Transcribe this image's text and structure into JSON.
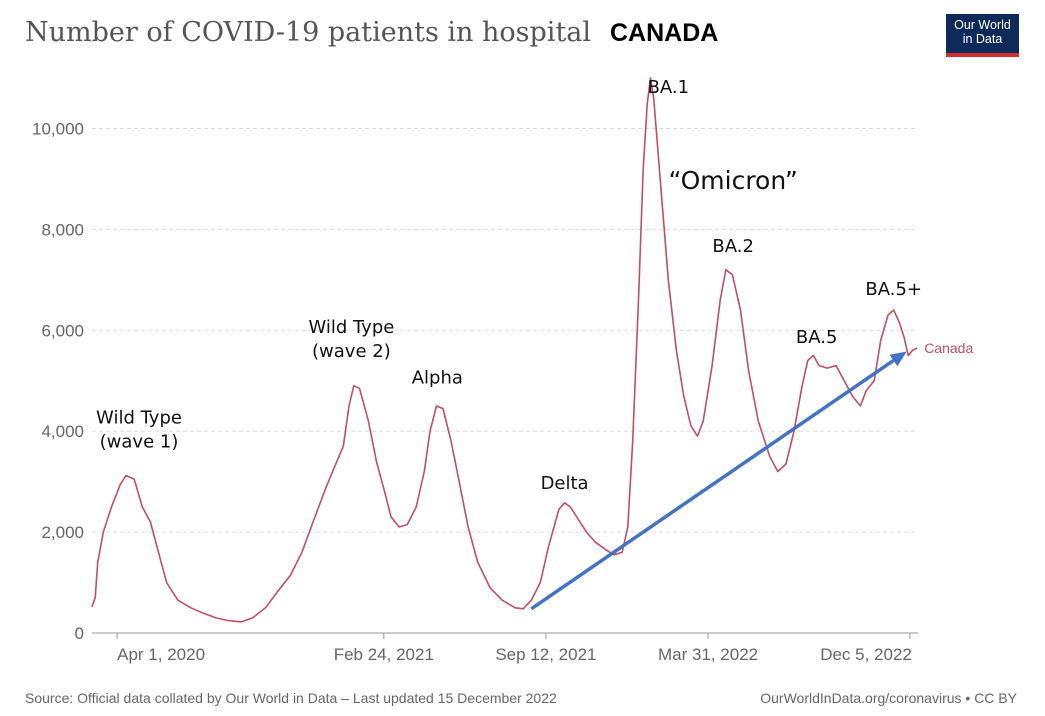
{
  "header": {
    "title": "Number of COVID-19 patients in hospital",
    "country": "CANADA",
    "logo_line1": "Our World",
    "logo_line2": "in Data"
  },
  "footer": {
    "source": "Source: Official data collated by Our World in Data – Last updated 15 December 2022",
    "license": "OurWorldInData.org/coronavirus • CC BY"
  },
  "colors": {
    "series": "#c15065",
    "arrow": "#4472c4",
    "grid": "#dddddd"
  },
  "chart_data": {
    "type": "line",
    "title": "Number of COVID-19 patients in hospital",
    "x_tick_labels": [
      "Apr 1, 2020",
      "Feb 24, 2021",
      "Sep 12, 2021",
      "Mar 31, 2022",
      "Dec 5, 2022"
    ],
    "x_tick_dates": [
      "2020-04-01",
      "2021-02-24",
      "2021-09-12",
      "2022-03-31",
      "2022-12-05"
    ],
    "xlim": [
      "2020-03-01",
      "2022-12-15"
    ],
    "ylim": [
      0,
      11000
    ],
    "y_ticks": [
      0,
      2000,
      4000,
      6000,
      8000,
      10000
    ],
    "y_tick_labels": [
      "0",
      "2,000",
      "4,000",
      "6,000",
      "8,000",
      "10,000"
    ],
    "grid": true,
    "series": [
      {
        "name": "Canada",
        "points": [
          [
            "2020-03-01",
            520
          ],
          [
            "2020-03-05",
            700
          ],
          [
            "2020-03-08",
            1400
          ],
          [
            "2020-03-15",
            2000
          ],
          [
            "2020-03-25",
            2500
          ],
          [
            "2020-04-05",
            2950
          ],
          [
            "2020-04-12",
            3120
          ],
          [
            "2020-04-22",
            3050
          ],
          [
            "2020-05-02",
            2500
          ],
          [
            "2020-05-12",
            2200
          ],
          [
            "2020-05-22",
            1600
          ],
          [
            "2020-06-01",
            1000
          ],
          [
            "2020-06-15",
            650
          ],
          [
            "2020-07-01",
            500
          ],
          [
            "2020-07-15",
            400
          ],
          [
            "2020-08-01",
            300
          ],
          [
            "2020-08-15",
            250
          ],
          [
            "2020-09-01",
            220
          ],
          [
            "2020-09-15",
            300
          ],
          [
            "2020-10-01",
            500
          ],
          [
            "2020-10-15",
            800
          ],
          [
            "2020-11-01",
            1150
          ],
          [
            "2020-11-15",
            1600
          ],
          [
            "2020-12-01",
            2300
          ],
          [
            "2020-12-15",
            2900
          ],
          [
            "2020-12-28",
            3400
          ],
          [
            "2021-01-05",
            3700
          ],
          [
            "2021-01-12",
            4500
          ],
          [
            "2021-01-18",
            4900
          ],
          [
            "2021-01-25",
            4850
          ],
          [
            "2021-02-05",
            4200
          ],
          [
            "2021-02-15",
            3400
          ],
          [
            "2021-02-25",
            2800
          ],
          [
            "2021-03-05",
            2300
          ],
          [
            "2021-03-15",
            2100
          ],
          [
            "2021-03-25",
            2150
          ],
          [
            "2021-04-05",
            2500
          ],
          [
            "2021-04-15",
            3200
          ],
          [
            "2021-04-22",
            4000
          ],
          [
            "2021-04-30",
            4500
          ],
          [
            "2021-05-08",
            4450
          ],
          [
            "2021-05-18",
            3800
          ],
          [
            "2021-05-28",
            3000
          ],
          [
            "2021-06-08",
            2100
          ],
          [
            "2021-06-20",
            1400
          ],
          [
            "2021-07-05",
            900
          ],
          [
            "2021-07-20",
            650
          ],
          [
            "2021-08-05",
            500
          ],
          [
            "2021-08-15",
            480
          ],
          [
            "2021-08-25",
            650
          ],
          [
            "2021-09-05",
            1000
          ],
          [
            "2021-09-15",
            1700
          ],
          [
            "2021-09-22",
            2100
          ],
          [
            "2021-09-28",
            2450
          ],
          [
            "2021-10-05",
            2580
          ],
          [
            "2021-10-12",
            2500
          ],
          [
            "2021-10-22",
            2250
          ],
          [
            "2021-11-01",
            2000
          ],
          [
            "2021-11-12",
            1800
          ],
          [
            "2021-11-25",
            1650
          ],
          [
            "2021-12-05",
            1550
          ],
          [
            "2021-12-15",
            1600
          ],
          [
            "2021-12-22",
            2100
          ],
          [
            "2021-12-28",
            3800
          ],
          [
            "2022-01-04",
            6500
          ],
          [
            "2022-01-10",
            9200
          ],
          [
            "2022-01-15",
            10500
          ],
          [
            "2022-01-19",
            11000
          ],
          [
            "2022-01-23",
            10600
          ],
          [
            "2022-02-01",
            8800
          ],
          [
            "2022-02-10",
            7000
          ],
          [
            "2022-02-20",
            5600
          ],
          [
            "2022-03-01",
            4700
          ],
          [
            "2022-03-10",
            4100
          ],
          [
            "2022-03-18",
            3900
          ],
          [
            "2022-03-25",
            4200
          ],
          [
            "2022-04-05",
            5300
          ],
          [
            "2022-04-15",
            6600
          ],
          [
            "2022-04-22",
            7200
          ],
          [
            "2022-04-30",
            7100
          ],
          [
            "2022-05-10",
            6400
          ],
          [
            "2022-05-20",
            5200
          ],
          [
            "2022-06-01",
            4200
          ],
          [
            "2022-06-15",
            3500
          ],
          [
            "2022-06-25",
            3200
          ],
          [
            "2022-07-05",
            3350
          ],
          [
            "2022-07-15",
            4000
          ],
          [
            "2022-07-25",
            4900
          ],
          [
            "2022-08-01",
            5400
          ],
          [
            "2022-08-08",
            5500
          ],
          [
            "2022-08-15",
            5300
          ],
          [
            "2022-08-25",
            5250
          ],
          [
            "2022-09-05",
            5300
          ],
          [
            "2022-09-15",
            5000
          ],
          [
            "2022-09-25",
            4700
          ],
          [
            "2022-10-05",
            4500
          ],
          [
            "2022-10-12",
            4800
          ],
          [
            "2022-10-22",
            5000
          ],
          [
            "2022-10-30",
            5800
          ],
          [
            "2022-11-08",
            6300
          ],
          [
            "2022-11-15",
            6400
          ],
          [
            "2022-11-22",
            6150
          ],
          [
            "2022-11-28",
            5850
          ],
          [
            "2022-12-03",
            5500
          ],
          [
            "2022-12-08",
            5600
          ],
          [
            "2022-12-14",
            5650
          ]
        ]
      }
    ],
    "trend_arrow": {
      "from": [
        "2021-08-25",
        480
      ],
      "to": [
        "2022-12-01",
        5580
      ]
    },
    "annotations": [
      {
        "lines": [
          "Wild Type",
          "(wave 1)"
        ],
        "date": "2020-04-28",
        "y": 4150
      },
      {
        "lines": [
          "Wild Type",
          "(wave 2)"
        ],
        "date": "2021-01-15",
        "y": 5950
      },
      {
        "lines": [
          "Alpha"
        ],
        "date": "2021-05-01",
        "y": 4950
      },
      {
        "lines": [
          "Delta"
        ],
        "date": "2021-10-05",
        "y": 2850
      },
      {
        "lines": [
          "BA.1"
        ],
        "date": "2022-02-10",
        "y": 10700
      },
      {
        "lines": [
          "“Omicron”"
        ],
        "date": "2022-05-01",
        "y": 8800,
        "big": true
      },
      {
        "lines": [
          "BA.2"
        ],
        "date": "2022-05-01",
        "y": 7550
      },
      {
        "lines": [
          "BA.5"
        ],
        "date": "2022-08-12",
        "y": 5750
      },
      {
        "lines": [
          "BA.5+"
        ],
        "date": "2022-11-15",
        "y": 6700
      }
    ]
  }
}
